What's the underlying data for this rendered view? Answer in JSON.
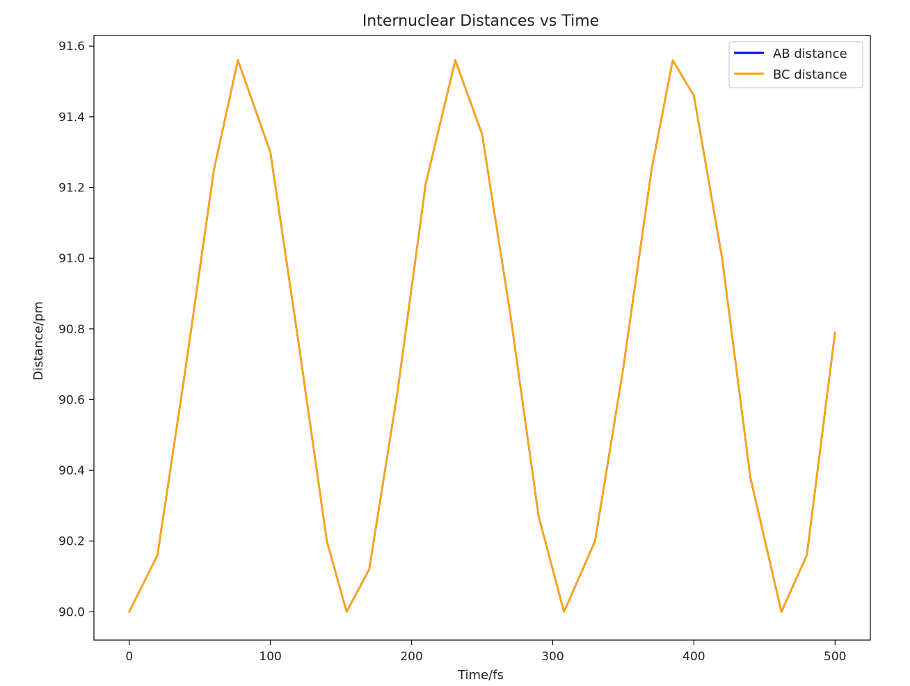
{
  "chart_data": {
    "type": "line",
    "title": "Internuclear Distances vs Time",
    "xlabel": "Time/fs",
    "ylabel": "Distance/pm",
    "xlim": [
      -25,
      525
    ],
    "ylim": [
      89.92,
      91.63
    ],
    "xticks": [
      0,
      100,
      200,
      300,
      400,
      500
    ],
    "yticks": [
      90.0,
      90.2,
      90.4,
      90.6,
      90.8,
      91.0,
      91.2,
      91.4,
      91.6
    ],
    "xtick_labels": [
      "0",
      "100",
      "200",
      "300",
      "400",
      "500"
    ],
    "ytick_labels": [
      "90.0",
      "90.2",
      "90.4",
      "90.6",
      "90.8",
      "91.0",
      "91.2",
      "91.4",
      "91.6"
    ],
    "grid": false,
    "legend_position": "top-right",
    "series": [
      {
        "name": "AB distance",
        "color": "#0000ff",
        "x": [
          0,
          20,
          40,
          60,
          77,
          100,
          120,
          140,
          154,
          170,
          190,
          210,
          231,
          250,
          270,
          290,
          308,
          330,
          350,
          370,
          385,
          400,
          420,
          440,
          462,
          480,
          500
        ],
        "y": [
          90.0,
          90.16,
          90.69,
          91.25,
          91.56,
          91.3,
          90.76,
          90.2,
          90.0,
          90.12,
          90.62,
          91.21,
          91.56,
          91.35,
          90.84,
          90.27,
          90.0,
          90.2,
          90.69,
          91.25,
          91.56,
          91.46,
          91.0,
          90.38,
          90.0,
          90.16,
          90.79
        ]
      },
      {
        "name": "BC distance",
        "color": "#ffa500",
        "x": [
          0,
          20,
          40,
          60,
          77,
          100,
          120,
          140,
          154,
          170,
          190,
          210,
          231,
          250,
          270,
          290,
          308,
          330,
          350,
          370,
          385,
          400,
          420,
          440,
          462,
          480,
          500
        ],
        "y": [
          90.0,
          90.16,
          90.69,
          91.25,
          91.56,
          91.3,
          90.76,
          90.2,
          90.0,
          90.12,
          90.62,
          91.21,
          91.56,
          91.35,
          90.84,
          90.27,
          90.0,
          90.2,
          90.69,
          91.25,
          91.56,
          91.46,
          91.0,
          90.38,
          90.0,
          90.16,
          90.79
        ]
      }
    ]
  }
}
